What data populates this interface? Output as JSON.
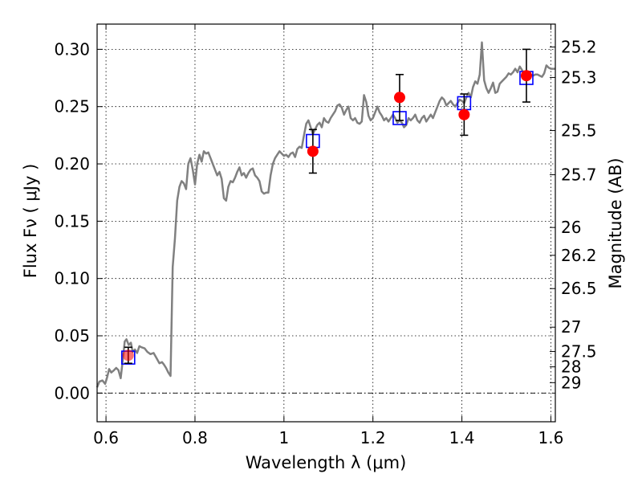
{
  "chart_data": {
    "type": "scatter",
    "xlabel": "Wavelength  λ (μm)",
    "ylabel": "Flux  Fν  ( μJy )",
    "y2label": "Magnitude (AB)",
    "xlim": [
      0.58,
      1.61
    ],
    "ylim": [
      -0.025,
      0.322
    ],
    "grid": true,
    "x_ticks": [
      "0.6",
      "0.8",
      "1",
      "1.2",
      "1.4",
      "1.6"
    ],
    "y_ticks": [
      "0.00",
      "0.05",
      "0.10",
      "0.15",
      "0.20",
      "0.25",
      "0.30"
    ],
    "mag_ticks": [
      "25.2",
      "25.3",
      "25.5",
      "25.7",
      "26",
      "26.2",
      "26.5",
      "27",
      "27.5",
      "28",
      "29"
    ],
    "series": [
      {
        "style": "line",
        "color": "#808080",
        "points": [
          [
            0.58,
            0.005
          ],
          [
            0.585,
            0.01
          ],
          [
            0.592,
            0.011
          ],
          [
            0.598,
            0.008
          ],
          [
            0.602,
            0.013
          ],
          [
            0.607,
            0.021
          ],
          [
            0.612,
            0.018
          ],
          [
            0.618,
            0.02
          ],
          [
            0.623,
            0.022
          ],
          [
            0.628,
            0.02
          ],
          [
            0.633,
            0.013
          ],
          [
            0.638,
            0.03
          ],
          [
            0.642,
            0.045
          ],
          [
            0.646,
            0.047
          ],
          [
            0.651,
            0.042
          ],
          [
            0.656,
            0.044
          ],
          [
            0.66,
            0.036
          ],
          [
            0.665,
            0.038
          ],
          [
            0.67,
            0.035
          ],
          [
            0.675,
            0.041
          ],
          [
            0.68,
            0.04
          ],
          [
            0.687,
            0.039
          ],
          [
            0.693,
            0.036
          ],
          [
            0.7,
            0.034
          ],
          [
            0.707,
            0.035
          ],
          [
            0.713,
            0.031
          ],
          [
            0.72,
            0.026
          ],
          [
            0.726,
            0.027
          ],
          [
            0.73,
            0.025
          ],
          [
            0.735,
            0.022
          ],
          [
            0.74,
            0.018
          ],
          [
            0.745,
            0.015
          ],
          [
            0.75,
            0.11
          ],
          [
            0.755,
            0.135
          ],
          [
            0.76,
            0.168
          ],
          [
            0.765,
            0.18
          ],
          [
            0.77,
            0.185
          ],
          [
            0.775,
            0.183
          ],
          [
            0.78,
            0.178
          ],
          [
            0.785,
            0.2
          ],
          [
            0.79,
            0.205
          ],
          [
            0.795,
            0.195
          ],
          [
            0.8,
            0.182
          ],
          [
            0.805,
            0.2
          ],
          [
            0.81,
            0.208
          ],
          [
            0.815,
            0.202
          ],
          [
            0.82,
            0.211
          ],
          [
            0.825,
            0.209
          ],
          [
            0.83,
            0.21
          ],
          [
            0.835,
            0.205
          ],
          [
            0.84,
            0.2
          ],
          [
            0.845,
            0.195
          ],
          [
            0.85,
            0.19
          ],
          [
            0.855,
            0.193
          ],
          [
            0.86,
            0.187
          ],
          [
            0.865,
            0.17
          ],
          [
            0.87,
            0.168
          ],
          [
            0.875,
            0.18
          ],
          [
            0.88,
            0.185
          ],
          [
            0.885,
            0.184
          ],
          [
            0.89,
            0.188
          ],
          [
            0.895,
            0.193
          ],
          [
            0.9,
            0.197
          ],
          [
            0.905,
            0.19
          ],
          [
            0.91,
            0.192
          ],
          [
            0.915,
            0.188
          ],
          [
            0.92,
            0.192
          ],
          [
            0.925,
            0.195
          ],
          [
            0.93,
            0.196
          ],
          [
            0.935,
            0.19
          ],
          [
            0.94,
            0.188
          ],
          [
            0.945,
            0.185
          ],
          [
            0.95,
            0.176
          ],
          [
            0.955,
            0.174
          ],
          [
            0.96,
            0.175
          ],
          [
            0.965,
            0.175
          ],
          [
            0.97,
            0.19
          ],
          [
            0.975,
            0.2
          ],
          [
            0.98,
            0.205
          ],
          [
            0.985,
            0.208
          ],
          [
            0.99,
            0.211
          ],
          [
            0.995,
            0.209
          ],
          [
            1.0,
            0.207
          ],
          [
            1.005,
            0.208
          ],
          [
            1.01,
            0.206
          ],
          [
            1.015,
            0.209
          ],
          [
            1.02,
            0.21
          ],
          [
            1.025,
            0.206
          ],
          [
            1.03,
            0.213
          ],
          [
            1.035,
            0.215
          ],
          [
            1.04,
            0.214
          ],
          [
            1.045,
            0.225
          ],
          [
            1.05,
            0.235
          ],
          [
            1.055,
            0.238
          ],
          [
            1.06,
            0.232
          ],
          [
            1.065,
            0.226
          ],
          [
            1.07,
            0.23
          ],
          [
            1.075,
            0.234
          ],
          [
            1.08,
            0.236
          ],
          [
            1.085,
            0.232
          ],
          [
            1.09,
            0.24
          ],
          [
            1.095,
            0.237
          ],
          [
            1.1,
            0.236
          ],
          [
            1.105,
            0.24
          ],
          [
            1.11,
            0.243
          ],
          [
            1.115,
            0.246
          ],
          [
            1.12,
            0.251
          ],
          [
            1.125,
            0.252
          ],
          [
            1.13,
            0.249
          ],
          [
            1.135,
            0.243
          ],
          [
            1.14,
            0.247
          ],
          [
            1.145,
            0.25
          ],
          [
            1.15,
            0.24
          ],
          [
            1.155,
            0.238
          ],
          [
            1.16,
            0.24
          ],
          [
            1.165,
            0.236
          ],
          [
            1.17,
            0.235
          ],
          [
            1.175,
            0.237
          ],
          [
            1.18,
            0.26
          ],
          [
            1.185,
            0.254
          ],
          [
            1.19,
            0.242
          ],
          [
            1.195,
            0.238
          ],
          [
            1.2,
            0.24
          ],
          [
            1.205,
            0.245
          ],
          [
            1.21,
            0.25
          ],
          [
            1.215,
            0.245
          ],
          [
            1.22,
            0.242
          ],
          [
            1.225,
            0.238
          ],
          [
            1.23,
            0.24
          ],
          [
            1.235,
            0.237
          ],
          [
            1.24,
            0.24
          ],
          [
            1.245,
            0.243
          ],
          [
            1.25,
            0.24
          ],
          [
            1.255,
            0.236
          ],
          [
            1.26,
            0.238
          ],
          [
            1.265,
            0.236
          ],
          [
            1.27,
            0.232
          ],
          [
            1.275,
            0.234
          ],
          [
            1.28,
            0.24
          ],
          [
            1.285,
            0.238
          ],
          [
            1.29,
            0.24
          ],
          [
            1.295,
            0.243
          ],
          [
            1.3,
            0.238
          ],
          [
            1.305,
            0.236
          ],
          [
            1.31,
            0.24
          ],
          [
            1.315,
            0.242
          ],
          [
            1.32,
            0.237
          ],
          [
            1.325,
            0.24
          ],
          [
            1.33,
            0.243
          ],
          [
            1.335,
            0.24
          ],
          [
            1.34,
            0.245
          ],
          [
            1.345,
            0.25
          ],
          [
            1.35,
            0.255
          ],
          [
            1.355,
            0.258
          ],
          [
            1.36,
            0.256
          ],
          [
            1.365,
            0.251
          ],
          [
            1.37,
            0.253
          ],
          [
            1.375,
            0.255
          ],
          [
            1.38,
            0.252
          ],
          [
            1.385,
            0.25
          ],
          [
            1.39,
            0.253
          ],
          [
            1.395,
            0.256
          ],
          [
            1.4,
            0.255
          ],
          [
            1.405,
            0.253
          ],
          [
            1.41,
            0.258
          ],
          [
            1.415,
            0.262
          ],
          [
            1.42,
            0.258
          ],
          [
            1.425,
            0.267
          ],
          [
            1.43,
            0.272
          ],
          [
            1.435,
            0.27
          ],
          [
            1.44,
            0.278
          ],
          [
            1.445,
            0.306
          ],
          [
            1.45,
            0.273
          ],
          [
            1.455,
            0.266
          ],
          [
            1.46,
            0.262
          ],
          [
            1.465,
            0.266
          ],
          [
            1.47,
            0.271
          ],
          [
            1.475,
            0.262
          ],
          [
            1.48,
            0.263
          ],
          [
            1.485,
            0.27
          ],
          [
            1.49,
            0.272
          ],
          [
            1.495,
            0.274
          ],
          [
            1.5,
            0.276
          ],
          [
            1.505,
            0.279
          ],
          [
            1.51,
            0.278
          ],
          [
            1.515,
            0.28
          ],
          [
            1.52,
            0.283
          ],
          [
            1.525,
            0.28
          ],
          [
            1.53,
            0.285
          ],
          [
            1.535,
            0.282
          ],
          [
            1.54,
            0.279
          ],
          [
            1.545,
            0.279
          ],
          [
            1.55,
            0.28
          ],
          [
            1.555,
            0.278
          ],
          [
            1.56,
            0.277
          ],
          [
            1.565,
            0.278
          ],
          [
            1.57,
            0.278
          ],
          [
            1.575,
            0.277
          ],
          [
            1.58,
            0.276
          ],
          [
            1.585,
            0.279
          ],
          [
            1.59,
            0.286
          ],
          [
            1.595,
            0.284
          ],
          [
            1.6,
            0.283
          ],
          [
            1.61,
            0.283
          ]
        ]
      },
      {
        "style": "square",
        "color": "#0000ff",
        "points": [
          [
            0.65,
            0.031
          ],
          [
            1.065,
            0.22
          ],
          [
            1.26,
            0.24
          ],
          [
            1.405,
            0.253
          ],
          [
            1.545,
            0.275
          ]
        ]
      },
      {
        "style": "circle",
        "color": "#ff0000",
        "points": [
          [
            0.65,
            0.033
          ],
          [
            1.065,
            0.211
          ],
          [
            1.26,
            0.258
          ],
          [
            1.405,
            0.243
          ],
          [
            1.545,
            0.277
          ]
        ],
        "errors": [
          0.007,
          0.019,
          0.02,
          0.018,
          0.023
        ]
      }
    ],
    "zero_line": true
  }
}
